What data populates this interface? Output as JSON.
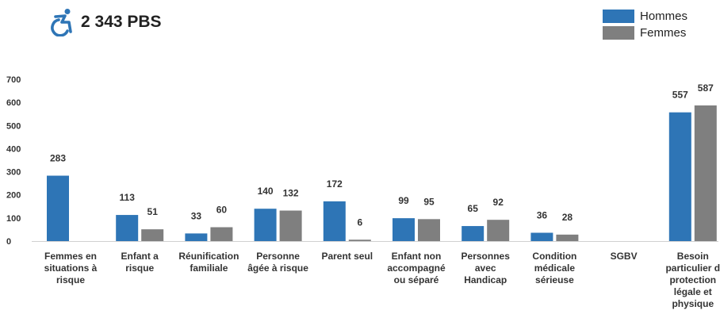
{
  "header": {
    "total_label": "2 343 PBS",
    "icon": "accessibility-wheelchair-icon"
  },
  "colors": {
    "hommes": "#2e75b6",
    "femmes": "#7f7f7f",
    "icon": "#2e75b6"
  },
  "chart_data": {
    "type": "bar",
    "categories": [
      "Femmes en situations à risque",
      "Enfant a risque",
      "Réunification familiale",
      "Personne âgée à risque",
      "Parent seul",
      "Enfant non accompagné ou séparé",
      "Personnes avec Handicap",
      "Condition médicale sérieuse",
      "SGBV",
      "Besoin particulier de protection légale et physique"
    ],
    "category_lines": [
      [
        "Femmes en",
        "situations à",
        "risque"
      ],
      [
        "Enfant a",
        "risque"
      ],
      [
        "Réunification",
        "familiale"
      ],
      [
        "Personne",
        "âgée à risque"
      ],
      [
        "Parent seul"
      ],
      [
        "Enfant non",
        "accompagné",
        "ou séparé"
      ],
      [
        "Personnes",
        "avec",
        "Handicap"
      ],
      [
        "Condition",
        "médicale",
        "sérieuse"
      ],
      [
        "SGBV"
      ],
      [
        "Besoin",
        "particulier d",
        "protection",
        "légale et",
        "physique"
      ]
    ],
    "series": [
      {
        "name": "Hommes",
        "values": [
          283,
          113,
          33,
          140,
          172,
          99,
          65,
          36,
          null,
          557
        ]
      },
      {
        "name": "Femmes",
        "values": [
          null,
          51,
          60,
          132,
          6,
          95,
          92,
          28,
          null,
          587
        ]
      }
    ],
    "ylim": [
      0,
      700
    ],
    "yticks": [
      0,
      100,
      200,
      300,
      400,
      500,
      600,
      700
    ],
    "legend": "top-right",
    "grid": false
  }
}
